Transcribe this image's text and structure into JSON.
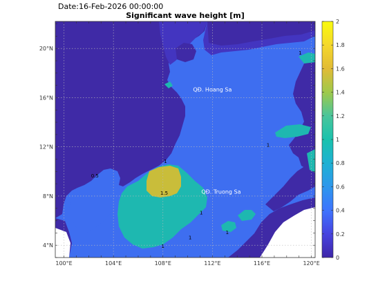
{
  "date_label": "Date:16-Feb-2026 00:00:00",
  "title": "Significant wave height [m]",
  "map": {
    "lon_range": [
      99.3,
      120.3
    ],
    "lat_range": [
      3.0,
      22.2
    ],
    "lon_ticks": [
      {
        "value": 100,
        "label": "100°E"
      },
      {
        "value": 104,
        "label": "104°E"
      },
      {
        "value": 108,
        "label": "108°E"
      },
      {
        "value": 112,
        "label": "112°E"
      },
      {
        "value": 116,
        "label": "116°E"
      },
      {
        "value": 120,
        "label": "120°E"
      }
    ],
    "lat_ticks": [
      {
        "value": 4,
        "label": "4°N"
      },
      {
        "value": 8,
        "label": "8°N"
      },
      {
        "value": 12,
        "label": "12°N"
      },
      {
        "value": 16,
        "label": "16°N"
      },
      {
        "value": 20,
        "label": "20°N"
      }
    ],
    "grid": true,
    "labels": [
      {
        "name": "QĐ. Hoang Sa",
        "lon": 112.0,
        "lat": 16.5
      },
      {
        "name": "QĐ. Truong Sa",
        "lon": 112.7,
        "lat": 8.2
      }
    ],
    "contour_labels": [
      {
        "text": "1",
        "lon": 119.1,
        "lat": 19.5
      },
      {
        "text": "1.5",
        "lon": 108.1,
        "lat": 8.1
      },
      {
        "text": "1",
        "lon": 108.2,
        "lat": 10.7
      },
      {
        "text": "0.5",
        "lon": 102.5,
        "lat": 9.5
      },
      {
        "text": "1",
        "lon": 111.1,
        "lat": 6.5
      },
      {
        "text": "1",
        "lon": 110.2,
        "lat": 4.5
      },
      {
        "text": "1",
        "lon": 108.0,
        "lat": 3.8
      },
      {
        "text": "1",
        "lon": 116.5,
        "lat": 12.0
      },
      {
        "text": "1",
        "lon": 113.2,
        "lat": 4.9
      }
    ]
  },
  "colorbar": {
    "min": 0,
    "max": 2,
    "ticks": [
      {
        "value": 0,
        "label": "0"
      },
      {
        "value": 0.2,
        "label": "0.2"
      },
      {
        "value": 0.4,
        "label": "0.4"
      },
      {
        "value": 0.6,
        "label": "0.6"
      },
      {
        "value": 0.8,
        "label": "0.8"
      },
      {
        "value": 1,
        "label": "1"
      },
      {
        "value": 1.2,
        "label": "1.2"
      },
      {
        "value": 1.4,
        "label": "1.4"
      },
      {
        "value": 1.6,
        "label": "1.6"
      },
      {
        "value": 1.8,
        "label": "1.8"
      },
      {
        "value": 2,
        "label": "2"
      }
    ],
    "colors": [
      "#3e26a8",
      "#4743e0",
      "#3e74fe",
      "#2e97ec",
      "#1eb1d3",
      "#1ac2ad",
      "#4ac59b",
      "#9fc94a",
      "#e1bb36",
      "#f5d82b",
      "#f9fb0e"
    ]
  },
  "colors": {
    "sea_low": "#3e6ef0",
    "sea_mid": "#1eb8b0",
    "sea_high": "#c9bd3a",
    "land_mask": "#3f2aa6",
    "coastal_low": "#4335c0"
  }
}
